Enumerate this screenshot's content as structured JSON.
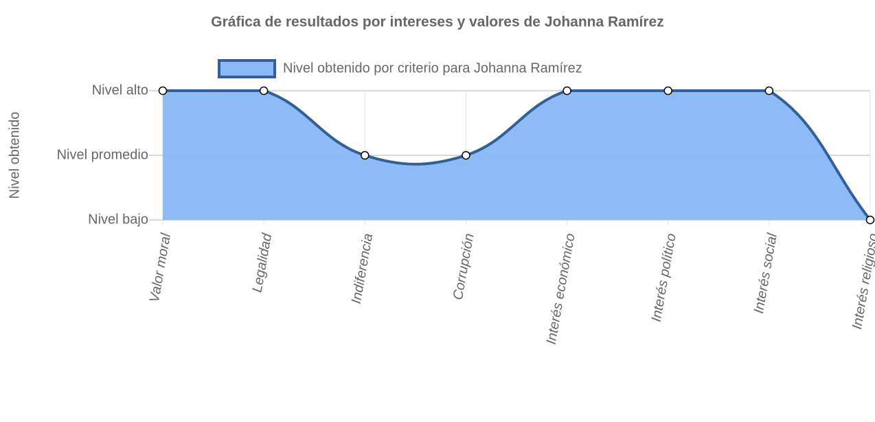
{
  "chart_data": {
    "type": "line",
    "title": "Gráfica de resultados por intereses y valores de Johanna Ramírez",
    "y_label": "Nivel obtenido",
    "categories": [
      "Valor moral",
      "Legalidad",
      "Indiferencia",
      "Corrupción",
      "Interés económico",
      "Interés político",
      "Interés social",
      "Interés religioso"
    ],
    "series": [
      {
        "name": "Nivel obtenido por criterio para Johanna Ramírez",
        "color": "#2e5f9e",
        "fill": "#8abaf6",
        "values": [
          3,
          3,
          2,
          2,
          3,
          3,
          3,
          1
        ]
      }
    ],
    "ylim": [
      1,
      3
    ],
    "yticks": [
      {
        "value": 1,
        "label": "Nivel bajo"
      },
      {
        "value": 2,
        "label": "Nivel promedio"
      },
      {
        "value": 3,
        "label": "Nivel alto"
      }
    ],
    "grid": true,
    "legend": "top"
  }
}
